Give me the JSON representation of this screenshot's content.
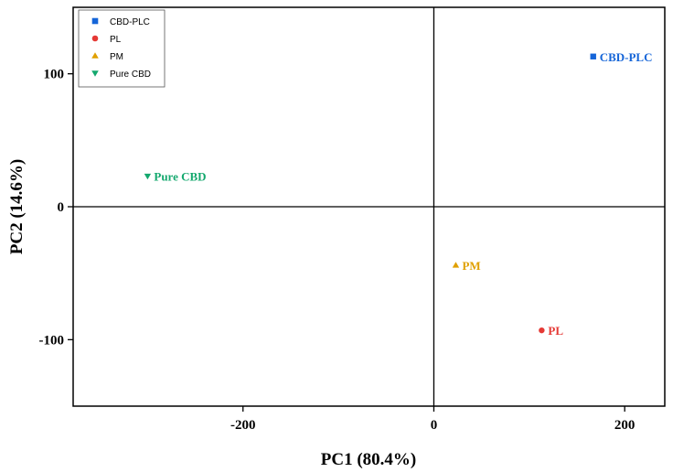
{
  "chart_data": {
    "type": "scatter",
    "xlabel": "PC1 (80.4%)",
    "ylabel": "PC2 (14.6%)",
    "xlim": [
      -378,
      242
    ],
    "ylim": [
      -150,
      150
    ],
    "xticks": [
      -200,
      0,
      200
    ],
    "yticks": [
      -100,
      0,
      100
    ],
    "grid": false,
    "zero_lines": true,
    "legend_position": "top-left",
    "series": [
      {
        "name": "CBD-PLC",
        "marker": "square",
        "color": "#1565d8",
        "x": [
          167
        ],
        "y": [
          113
        ],
        "label": "CBD-PLC"
      },
      {
        "name": "PL",
        "marker": "circle",
        "color": "#e53935",
        "x": [
          113
        ],
        "y": [
          -93
        ],
        "label": "PL"
      },
      {
        "name": "PM",
        "marker": "triangle-up",
        "color": "#e0a000",
        "x": [
          23
        ],
        "y": [
          -44
        ],
        "label": "PM"
      },
      {
        "name": "Pure CBD",
        "marker": "triangle-down",
        "color": "#14a86e",
        "x": [
          -300
        ],
        "y": [
          23
        ],
        "label": "Pure CBD"
      }
    ]
  }
}
